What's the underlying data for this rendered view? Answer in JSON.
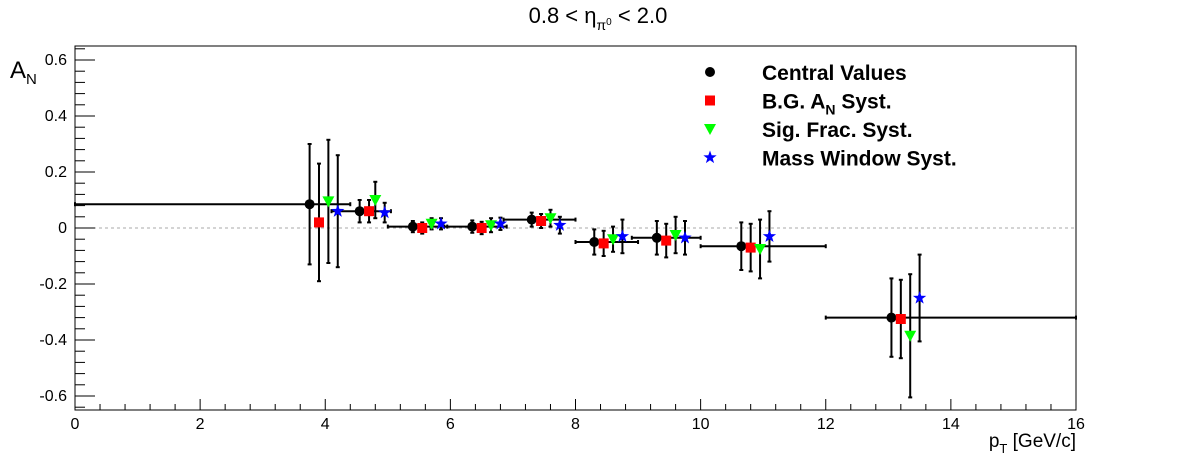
{
  "chart_data": {
    "type": "scatter",
    "title": {
      "pre": "0.8 < η",
      "sub": "π",
      "supsub": "0",
      "post": " < 2.0"
    },
    "xlabel": {
      "main": "p",
      "sub": "T",
      "post": " [GeV/c]"
    },
    "ylabel": {
      "main": "A",
      "sub": "N"
    },
    "xlim": [
      0,
      16
    ],
    "ylim": [
      -0.65,
      0.65
    ],
    "x_ticks": [
      0,
      2,
      4,
      6,
      8,
      10,
      12,
      14,
      16
    ],
    "x_tick_labels": [
      "0",
      "2",
      "4",
      "6",
      "8",
      "10",
      "12",
      "14",
      "16"
    ],
    "y_ticks": [
      -0.6,
      -0.4,
      -0.2,
      0,
      0.2,
      0.4,
      0.6
    ],
    "y_tick_labels": [
      "-0.6",
      "-0.4",
      "-0.2",
      "0",
      "0.2",
      "0.4",
      "0.6"
    ],
    "zero_line": true,
    "grid": false,
    "legend_position": "top-right",
    "series": [
      {
        "name": "Central Values",
        "label_parts": [
          "Central Values"
        ],
        "marker": "circle",
        "color": "#000000",
        "points": [
          {
            "x": 3.75,
            "y": 0.085,
            "yerr": 0.215,
            "xlo": 0.0,
            "xhi": 4.4
          },
          {
            "x": 4.55,
            "y": 0.06,
            "yerr": 0.04,
            "xlo": 4.1,
            "xhi": 5.05
          },
          {
            "x": 5.4,
            "y": 0.005,
            "yerr": 0.02,
            "xlo": 5.0,
            "xhi": 5.95
          },
          {
            "x": 6.35,
            "y": 0.005,
            "yerr": 0.022,
            "xlo": 5.9,
            "xhi": 6.9
          },
          {
            "x": 7.3,
            "y": 0.03,
            "yerr": 0.025,
            "xlo": 6.85,
            "xhi": 8.0
          },
          {
            "x": 8.3,
            "y": -0.05,
            "yerr": 0.045,
            "xlo": 8.0,
            "xhi": 9.0
          },
          {
            "x": 9.3,
            "y": -0.035,
            "yerr": 0.06,
            "xlo": 8.9,
            "xhi": 10.0
          },
          {
            "x": 10.65,
            "y": -0.065,
            "yerr": 0.085,
            "xlo": 10.0,
            "xhi": 12.0
          },
          {
            "x": 13.05,
            "y": -0.32,
            "yerr": 0.14,
            "xlo": 12.0,
            "xhi": 16.0
          }
        ]
      },
      {
        "name": "B.G. A_N Syst.",
        "label_parts": [
          "B.G. A",
          "N",
          " Syst."
        ],
        "marker": "square",
        "color": "#ff0000",
        "points": [
          {
            "x": 3.9,
            "y": 0.02,
            "yerr": 0.21
          },
          {
            "x": 4.7,
            "y": 0.06,
            "yerr": 0.04
          },
          {
            "x": 5.55,
            "y": 0.0,
            "yerr": 0.02
          },
          {
            "x": 6.5,
            "y": 0.0,
            "yerr": 0.022
          },
          {
            "x": 7.45,
            "y": 0.025,
            "yerr": 0.025
          },
          {
            "x": 8.45,
            "y": -0.055,
            "yerr": 0.045
          },
          {
            "x": 9.45,
            "y": -0.045,
            "yerr": 0.06
          },
          {
            "x": 10.8,
            "y": -0.07,
            "yerr": 0.085
          },
          {
            "x": 13.2,
            "y": -0.325,
            "yerr": 0.14
          }
        ]
      },
      {
        "name": "Sig. Frac. Syst.",
        "label_parts": [
          "Sig. Frac. Syst."
        ],
        "marker": "triangle-down",
        "color": "#00ff00",
        "points": [
          {
            "x": 4.05,
            "y": 0.095,
            "yerr": 0.22
          },
          {
            "x": 4.8,
            "y": 0.1,
            "yerr": 0.065
          },
          {
            "x": 5.7,
            "y": 0.015,
            "yerr": 0.02
          },
          {
            "x": 6.65,
            "y": 0.01,
            "yerr": 0.025
          },
          {
            "x": 7.6,
            "y": 0.035,
            "yerr": 0.03
          },
          {
            "x": 8.6,
            "y": -0.04,
            "yerr": 0.045
          },
          {
            "x": 9.6,
            "y": -0.025,
            "yerr": 0.065
          },
          {
            "x": 10.95,
            "y": -0.075,
            "yerr": 0.105
          },
          {
            "x": 13.35,
            "y": -0.385,
            "yerr": 0.22
          }
        ]
      },
      {
        "name": "Mass Window Syst.",
        "label_parts": [
          "Mass Window Syst."
        ],
        "marker": "star",
        "color": "#0000ff",
        "points": [
          {
            "x": 4.2,
            "y": 0.06,
            "yerr": 0.2
          },
          {
            "x": 4.95,
            "y": 0.055,
            "yerr": 0.035
          },
          {
            "x": 5.85,
            "y": 0.015,
            "yerr": 0.02
          },
          {
            "x": 6.8,
            "y": 0.015,
            "yerr": 0.022
          },
          {
            "x": 7.75,
            "y": 0.01,
            "yerr": 0.03
          },
          {
            "x": 8.75,
            "y": -0.03,
            "yerr": 0.06
          },
          {
            "x": 9.75,
            "y": -0.035,
            "yerr": 0.06
          },
          {
            "x": 11.1,
            "y": -0.03,
            "yerr": 0.09
          },
          {
            "x": 13.5,
            "y": -0.25,
            "yerr": 0.155
          }
        ]
      }
    ]
  }
}
